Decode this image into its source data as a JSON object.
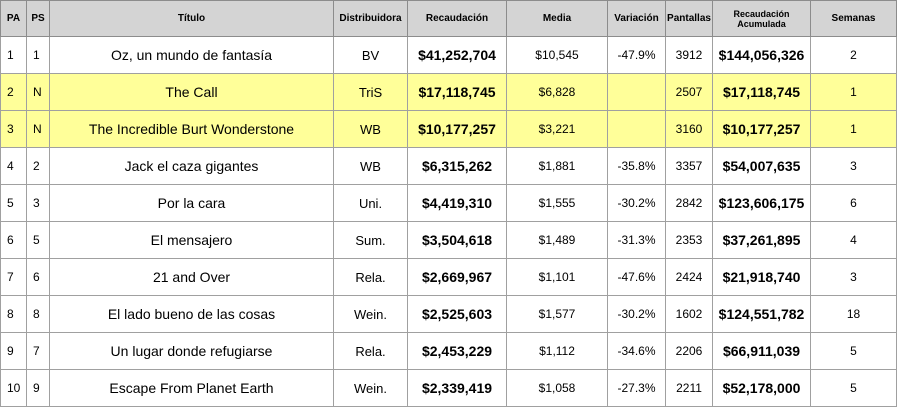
{
  "headers": {
    "pa": "PA",
    "ps": "PS",
    "title": "Título",
    "distributor": "Distribuidora",
    "gross": "Recaudación",
    "average": "Media",
    "change": "Variación",
    "screens": "Pantallas",
    "cumulative": "Recaudación Acumulada",
    "weeks": "Semanas"
  },
  "highlight_color": "#ffff99",
  "rows": [
    {
      "pa": "1",
      "ps": "1",
      "title": "Oz, un mundo de fantasía",
      "distributor": "BV",
      "gross": "$41,252,704",
      "average": "$10,545",
      "change": "-47.9%",
      "screens": "3912",
      "cumulative": "$144,056,326",
      "weeks": "2",
      "highlight": false
    },
    {
      "pa": "2",
      "ps": "N",
      "title": "The Call",
      "distributor": "TriS",
      "gross": "$17,118,745",
      "average": "$6,828",
      "change": "",
      "screens": "2507",
      "cumulative": "$17,118,745",
      "weeks": "1",
      "highlight": true
    },
    {
      "pa": "3",
      "ps": "N",
      "title": "The Incredible Burt Wonderstone",
      "distributor": "WB",
      "gross": "$10,177,257",
      "average": "$3,221",
      "change": "",
      "screens": "3160",
      "cumulative": "$10,177,257",
      "weeks": "1",
      "highlight": true
    },
    {
      "pa": "4",
      "ps": "2",
      "title": "Jack el caza gigantes",
      "distributor": "WB",
      "gross": "$6,315,262",
      "average": "$1,881",
      "change": "-35.8%",
      "screens": "3357",
      "cumulative": "$54,007,635",
      "weeks": "3",
      "highlight": false
    },
    {
      "pa": "5",
      "ps": "3",
      "title": "Por la cara",
      "distributor": "Uni.",
      "gross": "$4,419,310",
      "average": "$1,555",
      "change": "-30.2%",
      "screens": "2842",
      "cumulative": "$123,606,175",
      "weeks": "6",
      "highlight": false
    },
    {
      "pa": "6",
      "ps": "5",
      "title": "El mensajero",
      "distributor": "Sum.",
      "gross": "$3,504,618",
      "average": "$1,489",
      "change": "-31.3%",
      "screens": "2353",
      "cumulative": "$37,261,895",
      "weeks": "4",
      "highlight": false
    },
    {
      "pa": "7",
      "ps": "6",
      "title": "21 and Over",
      "distributor": "Rela.",
      "gross": "$2,669,967",
      "average": "$1,101",
      "change": "-47.6%",
      "screens": "2424",
      "cumulative": "$21,918,740",
      "weeks": "3",
      "highlight": false
    },
    {
      "pa": "8",
      "ps": "8",
      "title": "El lado bueno de las cosas",
      "distributor": "Wein.",
      "gross": "$2,525,603",
      "average": "$1,577",
      "change": "-30.2%",
      "screens": "1602",
      "cumulative": "$124,551,782",
      "weeks": "18",
      "highlight": false
    },
    {
      "pa": "9",
      "ps": "7",
      "title": "Un lugar donde refugiarse",
      "distributor": "Rela.",
      "gross": "$2,453,229",
      "average": "$1,112",
      "change": "-34.6%",
      "screens": "2206",
      "cumulative": "$66,911,039",
      "weeks": "5",
      "highlight": false
    },
    {
      "pa": "10",
      "ps": "9",
      "title": "Escape From Planet Earth",
      "distributor": "Wein.",
      "gross": "$2,339,419",
      "average": "$1,058",
      "change": "-27.3%",
      "screens": "2211",
      "cumulative": "$52,178,000",
      "weeks": "5",
      "highlight": false
    }
  ]
}
